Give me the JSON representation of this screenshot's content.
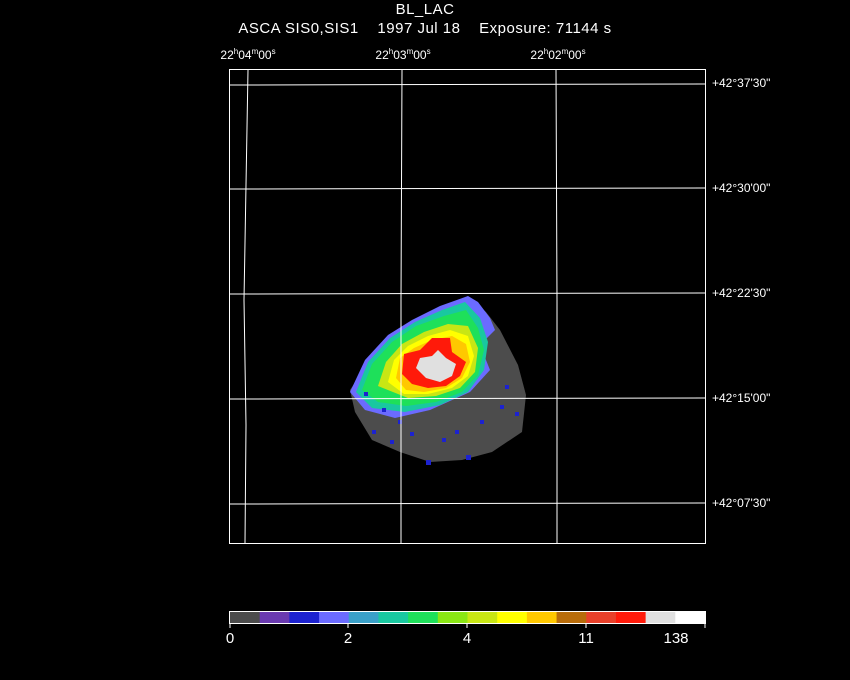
{
  "title": "BL_LAC",
  "subtitle": {
    "instrument": "ASCA SIS0,SIS1",
    "date": "1997 Jul 18",
    "exposure": "Exposure: 71144 s"
  },
  "ra_ticks": [
    {
      "h": "22",
      "m": "04",
      "s": "00"
    },
    {
      "h": "22",
      "m": "03",
      "s": "00"
    },
    {
      "h": "22",
      "m": "02",
      "s": "00"
    }
  ],
  "dec_ticks": [
    "+42°37'30\"",
    "+42°30'00\"",
    "+42°22'30\"",
    "+42°15'00\"",
    "+42°07'30\""
  ],
  "colorbar": {
    "colors": [
      "#4c4c4c",
      "#6a3ab0",
      "#1c22d0",
      "#6b6bff",
      "#3aa0c8",
      "#19c8a0",
      "#1ee05a",
      "#8ae614",
      "#c8e614",
      "#ffff00",
      "#ffc800",
      "#b86c0a",
      "#e8402a",
      "#ff1a0a",
      "#e0e0e0",
      "#ffffff"
    ],
    "labels": [
      "0",
      "2",
      "4",
      "11",
      "138"
    ]
  }
}
